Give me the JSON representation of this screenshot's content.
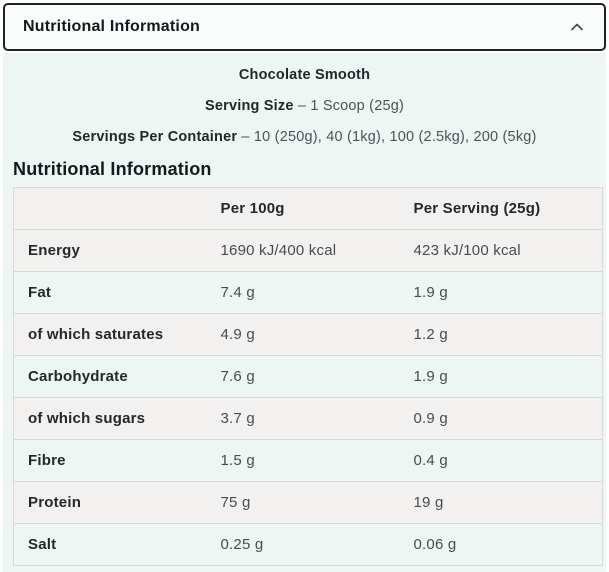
{
  "accordion": {
    "title": "Nutritional Information",
    "chevron_icon": "chevron-up"
  },
  "product": {
    "flavour": "Chocolate Smooth",
    "separator": "–",
    "serving_size": {
      "label": "Serving Size",
      "value": "1 Scoop (25g)"
    },
    "servings_per_container": {
      "label": "Servings Per Container",
      "value": "10 (250g), 40 (1kg), 100 (2.5kg), 200 (5kg)"
    }
  },
  "section": {
    "heading": "Nutritional Information"
  },
  "table": {
    "columns": [
      "",
      "Per 100g",
      "Per Serving (25g)"
    ],
    "rows": [
      {
        "label": "Energy",
        "per_100g": "1690 kJ/400 kcal",
        "per_serving": "423 kJ/100 kcal"
      },
      {
        "label": "Fat",
        "per_100g": "7.4 g",
        "per_serving": "1.9 g"
      },
      {
        "label": "of which saturates",
        "per_100g": "4.9 g",
        "per_serving": "1.2 g"
      },
      {
        "label": "Carbohydrate",
        "per_100g": "7.6 g",
        "per_serving": "1.9 g"
      },
      {
        "label": "of which sugars",
        "per_100g": "3.7 g",
        "per_serving": "0.9 g"
      },
      {
        "label": "Fibre",
        "per_100g": "1.5 g",
        "per_serving": "0.4 g"
      },
      {
        "label": "Protein",
        "per_100g": "75 g",
        "per_serving": "19 g"
      },
      {
        "label": "Salt",
        "per_100g": "0.25 g",
        "per_serving": "0.06 g"
      }
    ]
  },
  "colors": {
    "header_border": "#1e2126",
    "panel_bg": "#edf6f3",
    "row_stripe": "#f2f1ef",
    "divider": "#d6dad8",
    "heading_text": "#15181c",
    "value_text": "#464c51"
  }
}
